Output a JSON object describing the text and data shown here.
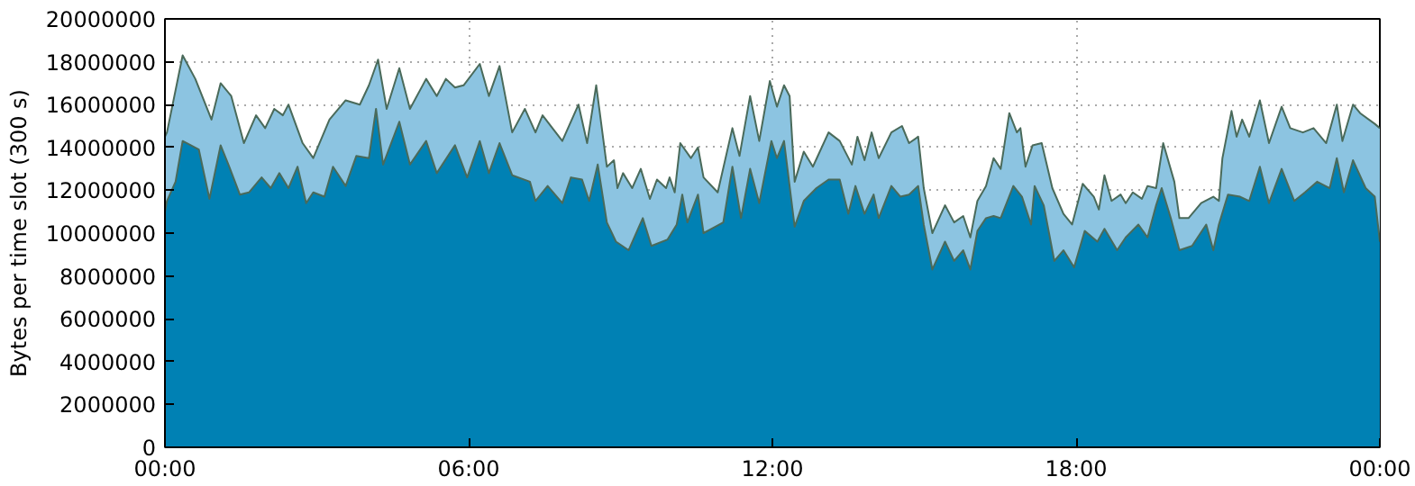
{
  "chart_data": {
    "type": "area",
    "ylabel": "Bytes per time slot (300 s)",
    "xlim": [
      0,
      24
    ],
    "ylim": [
      0,
      20000000
    ],
    "xticks": [
      {
        "value": 0,
        "label": "00:00"
      },
      {
        "value": 6,
        "label": "06:00"
      },
      {
        "value": 12,
        "label": "12:00"
      },
      {
        "value": 18,
        "label": "18:00"
      },
      {
        "value": 24,
        "label": "00:00"
      }
    ],
    "yticks": [
      0,
      2000000,
      4000000,
      6000000,
      8000000,
      10000000,
      12000000,
      14000000,
      16000000,
      18000000,
      20000000
    ],
    "grid": true,
    "series": [
      {
        "color": "#8cc4e1",
        "x": [
          0,
          0.04,
          0.35,
          0.6,
          0.92,
          1.1,
          1.31,
          1.56,
          1.8,
          1.98,
          2.16,
          2.33,
          2.44,
          2.72,
          2.93,
          3.25,
          3.57,
          3.85,
          4.03,
          4.21,
          4.38,
          4.63,
          4.84,
          5.16,
          5.37,
          5.55,
          5.73,
          5.9,
          6.22,
          6.4,
          6.61,
          6.86,
          7.11,
          7.32,
          7.46,
          7.85,
          8.17,
          8.34,
          8.52,
          8.73,
          8.87,
          8.94,
          9.05,
          9.23,
          9.4,
          9.58,
          9.72,
          9.9,
          9.97,
          10.07,
          10.18,
          10.39,
          10.53,
          10.64,
          10.92,
          11.21,
          11.35,
          11.56,
          11.74,
          11.95,
          12.09,
          12.23,
          12.34,
          12.44,
          12.62,
          12.8,
          13.11,
          13.33,
          13.57,
          13.68,
          13.82,
          13.96,
          14.1,
          14.35,
          14.56,
          14.7,
          14.88,
          14.99,
          15.16,
          15.41,
          15.59,
          15.77,
          15.91,
          16.05,
          16.22,
          16.37,
          16.51,
          16.68,
          16.83,
          16.9,
          17,
          17.14,
          17.32,
          17.53,
          17.75,
          17.92,
          18.13,
          18.35,
          18.45,
          18.56,
          18.7,
          18.88,
          18.98,
          19.12,
          19.3,
          19.41,
          19.58,
          19.72,
          19.94,
          20.04,
          20.22,
          20.47,
          20.71,
          20.82,
          20.89,
          21.07,
          21.17,
          21.28,
          21.42,
          21.63,
          21.81,
          22.06,
          22.23,
          22.48,
          22.69,
          22.94,
          23.15,
          23.26,
          23.47,
          23.61,
          23.9,
          24
        ],
        "values": [
          14500000,
          14700000,
          18300000,
          17200000,
          15300000,
          17000000,
          16400000,
          14200000,
          15500000,
          14900000,
          15800000,
          15500000,
          16000000,
          14200000,
          13500000,
          15300000,
          16200000,
          16000000,
          16900000,
          18100000,
          15800000,
          17700000,
          15800000,
          17200000,
          16400000,
          17200000,
          16800000,
          16900000,
          17900000,
          16400000,
          17800000,
          14700000,
          15800000,
          14700000,
          15500000,
          14300000,
          16000000,
          14200000,
          16900000,
          13100000,
          13400000,
          12100000,
          12800000,
          12100000,
          13000000,
          11600000,
          12500000,
          12100000,
          12600000,
          11900000,
          14200000,
          13500000,
          14000000,
          12600000,
          11900000,
          14900000,
          13600000,
          16400000,
          14300000,
          17100000,
          15900000,
          16900000,
          16400000,
          12400000,
          13800000,
          13100000,
          14700000,
          14300000,
          13200000,
          14500000,
          13400000,
          14700000,
          13500000,
          14700000,
          15000000,
          14200000,
          14500000,
          12100000,
          10000000,
          11300000,
          10500000,
          10800000,
          9800000,
          11500000,
          12200000,
          13500000,
          13000000,
          15600000,
          14700000,
          14900000,
          13100000,
          14100000,
          14200000,
          12100000,
          10900000,
          10400000,
          12300000,
          11700000,
          11100000,
          12700000,
          11500000,
          11800000,
          11400000,
          11900000,
          11600000,
          12200000,
          12100000,
          14200000,
          12400000,
          10700000,
          10700000,
          11400000,
          11700000,
          11500000,
          13500000,
          15700000,
          14500000,
          15300000,
          14500000,
          16200000,
          14200000,
          15900000,
          14900000,
          14700000,
          14900000,
          14200000,
          16000000,
          14300000,
          16000000,
          15600000,
          15100000,
          14900000
        ]
      },
      {
        "color": "#0081b4",
        "x": [
          0,
          0.04,
          0.21,
          0.35,
          0.67,
          0.88,
          1.1,
          1.27,
          1.48,
          1.66,
          1.91,
          2.09,
          2.26,
          2.44,
          2.62,
          2.79,
          2.93,
          3.15,
          3.32,
          3.57,
          3.78,
          4.03,
          4.17,
          4.31,
          4.63,
          4.84,
          5.16,
          5.37,
          5.73,
          5.97,
          6.22,
          6.4,
          6.61,
          6.86,
          7.21,
          7.32,
          7.56,
          7.85,
          8.02,
          8.24,
          8.38,
          8.55,
          8.73,
          8.91,
          9.16,
          9.44,
          9.61,
          9.93,
          10.11,
          10.22,
          10.32,
          10.53,
          10.64,
          11.03,
          11.21,
          11.38,
          11.56,
          11.74,
          11.98,
          12.09,
          12.23,
          12.44,
          12.62,
          12.87,
          13.11,
          13.33,
          13.5,
          13.64,
          13.82,
          14,
          14.1,
          14.35,
          14.53,
          14.7,
          14.88,
          14.99,
          15.16,
          15.41,
          15.59,
          15.77,
          15.91,
          16.05,
          16.22,
          16.37,
          16.51,
          16.76,
          16.93,
          17.11,
          17.18,
          17.36,
          17.57,
          17.75,
          17.96,
          18.17,
          18.42,
          18.56,
          18.81,
          18.98,
          19.23,
          19.41,
          19.58,
          19.69,
          19.87,
          20.04,
          20.29,
          20.57,
          20.71,
          20.82,
          21,
          21.24,
          21.42,
          21.63,
          21.81,
          22.06,
          22.31,
          22.52,
          22.76,
          23.01,
          23.15,
          23.29,
          23.47,
          23.72,
          23.9,
          24
        ],
        "values": [
          11000000,
          11500000,
          12400000,
          14300000,
          13900000,
          11600000,
          14100000,
          13100000,
          11800000,
          11900000,
          12600000,
          12100000,
          12800000,
          12100000,
          13100000,
          11400000,
          11900000,
          11700000,
          13100000,
          12200000,
          13600000,
          13500000,
          15800000,
          13200000,
          15200000,
          13200000,
          14300000,
          12800000,
          14100000,
          12600000,
          14300000,
          12800000,
          14200000,
          12700000,
          12400000,
          11500000,
          12200000,
          11400000,
          12600000,
          12500000,
          11500000,
          13200000,
          10500000,
          9600000,
          9200000,
          10700000,
          9400000,
          9700000,
          10400000,
          11800000,
          10500000,
          11800000,
          10000000,
          10500000,
          13100000,
          10700000,
          13000000,
          11400000,
          14300000,
          13500000,
          14300000,
          10300000,
          11500000,
          12100000,
          12500000,
          12500000,
          10900000,
          12200000,
          10900000,
          11800000,
          10700000,
          12200000,
          11700000,
          11800000,
          12200000,
          10400000,
          8300000,
          9600000,
          8700000,
          9200000,
          8300000,
          10100000,
          10700000,
          10800000,
          10700000,
          12200000,
          11700000,
          10400000,
          12200000,
          11300000,
          8700000,
          9200000,
          8400000,
          10100000,
          9600000,
          10200000,
          9200000,
          9800000,
          10400000,
          9800000,
          11300000,
          12100000,
          10700000,
          9200000,
          9400000,
          10400000,
          9200000,
          10400000,
          11800000,
          11700000,
          11500000,
          13100000,
          11400000,
          13000000,
          11500000,
          11900000,
          12400000,
          12100000,
          13500000,
          11900000,
          13400000,
          12100000,
          11700000,
          9600000
        ]
      }
    ]
  }
}
